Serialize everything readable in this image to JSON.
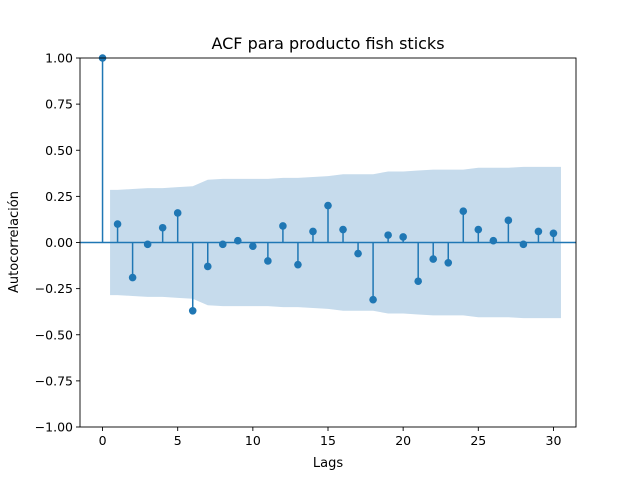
{
  "chart_data": {
    "type": "stem",
    "title": "ACF para producto fish sticks",
    "xlabel": "Lags",
    "ylabel": "Autocorrelación",
    "xlim": [
      -1.5,
      31.5
    ],
    "ylim": [
      -1.0,
      1.0
    ],
    "xticks": [
      0,
      5,
      10,
      15,
      20,
      25,
      30
    ],
    "yticks": [
      -1.0,
      -0.75,
      -0.5,
      -0.25,
      0.0,
      0.25,
      0.5,
      0.75,
      1.0
    ],
    "ytick_labels": [
      "−1.00",
      "−0.75",
      "−0.50",
      "−0.25",
      "0.00",
      "0.25",
      "0.50",
      "0.75",
      "1.00"
    ],
    "xtick_labels": [
      "0",
      "5",
      "10",
      "15",
      "20",
      "25",
      "30"
    ],
    "grid": false,
    "colors": {
      "stem": "#1f77b4",
      "band": "#c6dbec",
      "baseline": "#1f77b4"
    },
    "lags": [
      0,
      1,
      2,
      3,
      4,
      5,
      6,
      7,
      8,
      9,
      10,
      11,
      12,
      13,
      14,
      15,
      16,
      17,
      18,
      19,
      20,
      21,
      22,
      23,
      24,
      25,
      26,
      27,
      28,
      29,
      30
    ],
    "acf": [
      1.0,
      0.1,
      -0.19,
      -0.01,
      0.08,
      0.16,
      -0.37,
      -0.13,
      -0.01,
      0.01,
      -0.02,
      -0.1,
      0.09,
      -0.12,
      0.06,
      0.2,
      0.07,
      -0.06,
      -0.31,
      0.04,
      0.03,
      -0.21,
      -0.09,
      -0.11,
      0.17,
      0.07,
      0.01,
      0.12,
      -0.01,
      0.06,
      0.05
    ],
    "confidence_band": {
      "lags": [
        0.5,
        1,
        2,
        3,
        4,
        5,
        6,
        7,
        8,
        9,
        10,
        11,
        12,
        13,
        14,
        15,
        16,
        17,
        18,
        19,
        20,
        21,
        22,
        23,
        24,
        25,
        26,
        27,
        28,
        29,
        30,
        30.5
      ],
      "upper": [
        0.285,
        0.285,
        0.29,
        0.295,
        0.295,
        0.3,
        0.305,
        0.34,
        0.345,
        0.345,
        0.345,
        0.345,
        0.35,
        0.35,
        0.355,
        0.36,
        0.37,
        0.37,
        0.37,
        0.385,
        0.385,
        0.39,
        0.395,
        0.395,
        0.395,
        0.405,
        0.405,
        0.405,
        0.41,
        0.41,
        0.41,
        0.41
      ],
      "lower": [
        -0.285,
        -0.285,
        -0.29,
        -0.295,
        -0.295,
        -0.3,
        -0.305,
        -0.34,
        -0.345,
        -0.345,
        -0.345,
        -0.345,
        -0.35,
        -0.35,
        -0.355,
        -0.36,
        -0.37,
        -0.37,
        -0.37,
        -0.385,
        -0.385,
        -0.39,
        -0.395,
        -0.395,
        -0.395,
        -0.405,
        -0.405,
        -0.405,
        -0.41,
        -0.41,
        -0.41,
        -0.41
      ]
    }
  }
}
